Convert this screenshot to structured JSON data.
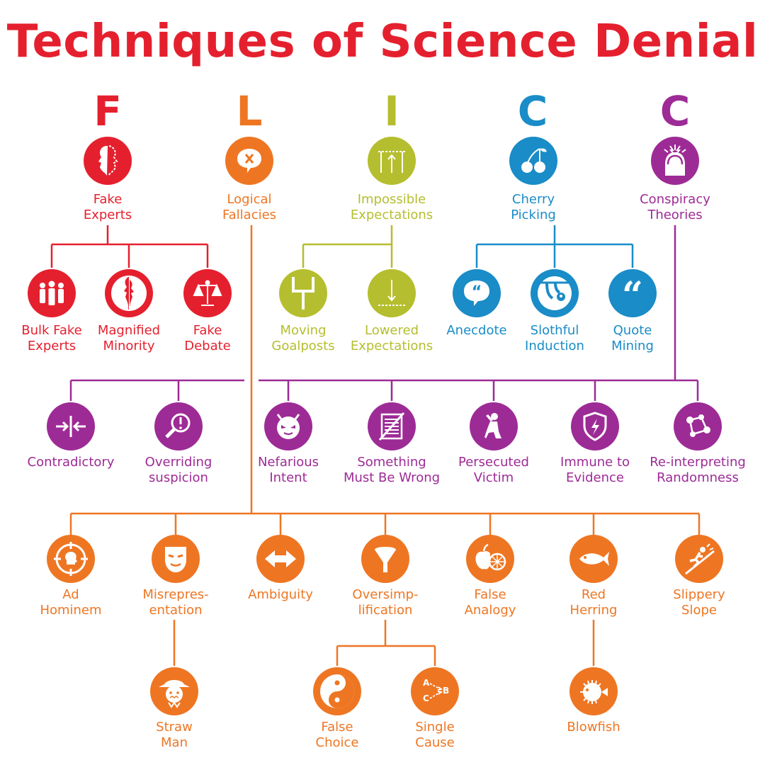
{
  "title": "Techniques of Science Denial",
  "colors": {
    "title": "#e5202e",
    "F": "#e5202e",
    "L": "#ee7623",
    "I": "#b5be2e",
    "C1": "#1a8cc7",
    "C2": "#9d2b96"
  },
  "letters": {
    "f": "F",
    "l": "L",
    "i": "I",
    "c1": "C",
    "c2": "C"
  },
  "main": {
    "fake_experts": "Fake\nExperts",
    "logical_fallacies": "Logical\nFallacies",
    "impossible_expectations": "Impossible\nExpectations",
    "cherry_picking": "Cherry\nPicking",
    "conspiracy_theories": "Conspiracy\nTheories"
  },
  "fake_experts_sub": {
    "bulk": "Bulk Fake\nExperts",
    "magnified": "Magnified\nMinority",
    "debate": "Fake\nDebate"
  },
  "impossible_sub": {
    "moving": "Moving\nGoalposts",
    "lowered": "Lowered\nExpectations"
  },
  "cherry_sub": {
    "anecdote": "Anecdote",
    "slothful": "Slothful\nInduction",
    "quote": "Quote\nMining"
  },
  "conspiracy_sub": {
    "contradictory": "Contradictory",
    "overriding": "Overriding\nsuspicion",
    "nefarious": "Nefarious\nIntent",
    "something": "Something\nMust Be Wrong",
    "persecuted": "Persecuted\nVictim",
    "immune": "Immune to\nEvidence",
    "reinterpreting": "Re-interpreting\nRandomness"
  },
  "fallacy_sub": {
    "ad_hominem": "Ad\nHominem",
    "misrepresentation": "Misrepres-\nentation",
    "ambiguity": "Ambiguity",
    "oversimplification": "Oversimp-\nlification",
    "false_analogy": "False\nAnalogy",
    "red_herring": "Red\nHerring",
    "slippery_slope": "Slippery\nSlope"
  },
  "fallacy_sub2": {
    "straw_man": "Straw\nMan",
    "false_choice": "False\nChoice",
    "single_cause": "Single\nCause",
    "blowfish": "Blowfish"
  },
  "icon_text": {
    "abc_a": "A",
    "abc_b": "B",
    "abc_c": "C"
  }
}
